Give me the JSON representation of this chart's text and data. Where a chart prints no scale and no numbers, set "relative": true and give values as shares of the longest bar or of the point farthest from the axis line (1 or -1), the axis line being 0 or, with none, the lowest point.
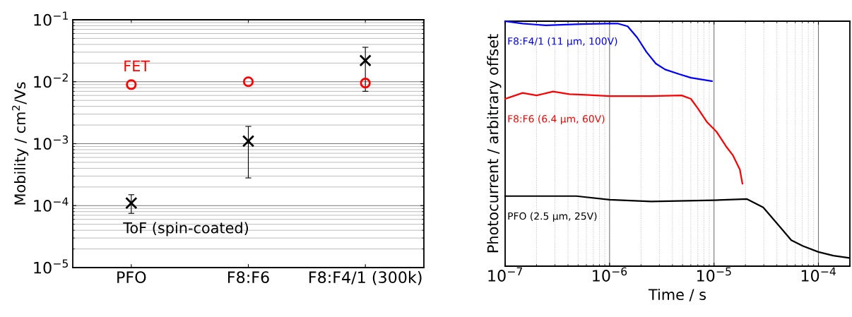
{
  "chart_data": [
    {
      "type": "scatter",
      "ylabel": "Mobility / cm$^{2}$/Vs",
      "categories": [
        "PFO",
        "F8:F6",
        "F8:F4/1 (300k)"
      ],
      "log": "y",
      "grid": "y",
      "ylim": [
        1e-05,
        0.1
      ],
      "yticks": [
        {
          "value": 1e-05,
          "label": "10$^{−5}$"
        },
        {
          "value": 0.0001,
          "label": "10$^{−4}$"
        },
        {
          "value": 0.001,
          "label": "10$^{−3}$"
        },
        {
          "value": 0.01,
          "label": "10$^{−2}$"
        },
        {
          "value": 0.1,
          "label": "10$^{−1}$"
        }
      ],
      "series": [
        {
          "name": "FET",
          "color": "#ff0000",
          "marker": "circle",
          "values": [
            0.009,
            0.01,
            0.0095
          ]
        },
        {
          "name": "ToF (spin-coated)",
          "color": "#000000",
          "marker": "cross",
          "values": [
            0.00011,
            0.0011,
            0.022
          ],
          "errors": [
            [
              7.5e-05,
              0.00015
            ],
            [
              0.00028,
              0.0019
            ],
            [
              0.007,
              0.036
            ]
          ]
        }
      ]
    },
    {
      "type": "line",
      "xlabel": "Time / s",
      "ylabel": "Photocurrent / arbitrary offset",
      "log": "x",
      "grid": "x",
      "relative": true,
      "tick_labels": "x",
      "xlim": [
        1e-07,
        0.0002
      ],
      "xticks": [
        {
          "value": 1e-07,
          "label": "10$^{−7}$"
        },
        {
          "value": 1e-06,
          "label": "10$^{−6}$"
        },
        {
          "value": 1e-05,
          "label": "10$^{−5}$"
        },
        {
          "value": 0.0001,
          "label": "10$^{−4}$"
        }
      ],
      "series": [
        {
          "name": "F8:F4/1 (11 μm, 100V)",
          "color": "#0000ff",
          "x": [
            1e-07,
            1.47e-07,
            2.46e-07,
            5.33e-07,
            1e-06,
            1.21e-06,
            1.49e-06,
            1.84e-06,
            2.25e-06,
            2.77e-06,
            3.4e-06,
            4.64e-06,
            6.01e-06,
            9.55e-06
          ],
          "values": [
            1.0,
            0.99,
            0.983,
            0.988,
            0.99,
            0.99,
            0.979,
            0.933,
            0.875,
            0.827,
            0.803,
            0.784,
            0.769,
            0.755
          ]
        },
        {
          "name": "F8:F6 (6.4 μm, 60V)",
          "color": "#ff0000",
          "x": [
            1e-07,
            1.47e-07,
            2e-07,
            2.88e-07,
            4.12e-07,
            5.92e-07,
            1e-06,
            2.5e-06,
            4.89e-06,
            6.01e-06,
            7.01e-06,
            8.61e-06,
            1.06e-05,
            1.3e-05,
            1.52e-05,
            1.77e-05,
            1.87e-05
          ],
          "values": [
            0.683,
            0.707,
            0.697,
            0.713,
            0.702,
            0.699,
            0.694,
            0.694,
            0.697,
            0.683,
            0.644,
            0.587,
            0.548,
            0.49,
            0.452,
            0.394,
            0.337
          ]
        },
        {
          "name": "PFO (2.5 μm, 25V)",
          "color": "#000000",
          "x": [
            1e-07,
            4.81e-07,
            1e-06,
            2.5e-06,
            1e-05,
            2.07e-05,
            2.96e-05,
            4.04e-05,
            5.5e-05,
            7.11e-05,
            0.0001,
            0.000139,
            0.000195
          ],
          "values": [
            0.286,
            0.286,
            0.271,
            0.264,
            0.269,
            0.274,
            0.24,
            0.173,
            0.106,
            0.082,
            0.058,
            0.043,
            0.034
          ]
        }
      ]
    }
  ]
}
